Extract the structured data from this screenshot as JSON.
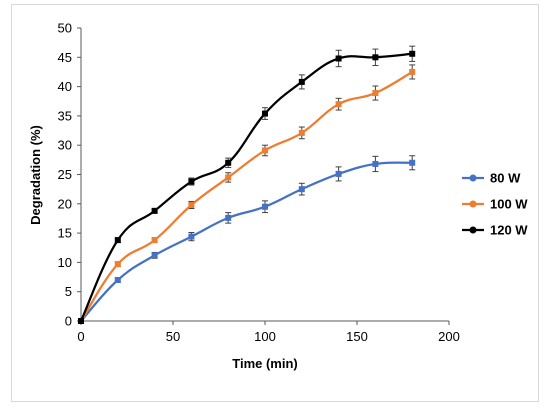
{
  "chart_data": {
    "type": "line",
    "title": "",
    "xlabel": "Time (min)",
    "ylabel": "Degradation (%)",
    "xlim": [
      0,
      200
    ],
    "ylim": [
      0,
      50
    ],
    "xticks": [
      0,
      50,
      100,
      150,
      200
    ],
    "yticks": [
      0,
      5,
      10,
      15,
      20,
      25,
      30,
      35,
      40,
      45,
      50
    ],
    "grid": false,
    "legend_position": "right",
    "x": [
      0,
      20,
      40,
      60,
      80,
      100,
      120,
      140,
      160,
      180
    ],
    "series": [
      {
        "name": "80 W",
        "color": "#4472C4",
        "values": [
          0,
          7.0,
          11.2,
          14.4,
          17.6,
          19.5,
          22.5,
          25.1,
          26.8,
          27.0
        ],
        "errors": [
          0,
          0.4,
          0.5,
          0.7,
          0.9,
          1.0,
          1.0,
          1.2,
          1.3,
          1.2
        ]
      },
      {
        "name": "100 W",
        "color": "#ED7D31",
        "values": [
          0,
          9.7,
          13.8,
          19.8,
          24.5,
          29.1,
          32.1,
          37.0,
          38.9,
          42.5
        ],
        "errors": [
          0,
          0.4,
          0.4,
          0.6,
          0.8,
          0.9,
          1.0,
          1.0,
          1.2,
          1.2
        ]
      },
      {
        "name": "120 W",
        "color": "#000000",
        "values": [
          0,
          13.8,
          18.8,
          23.8,
          27.0,
          35.4,
          40.8,
          44.8,
          45.0,
          45.6
        ],
        "errors": [
          0,
          0.4,
          0.4,
          0.6,
          0.8,
          1.0,
          1.2,
          1.4,
          1.4,
          1.3
        ]
      }
    ]
  }
}
